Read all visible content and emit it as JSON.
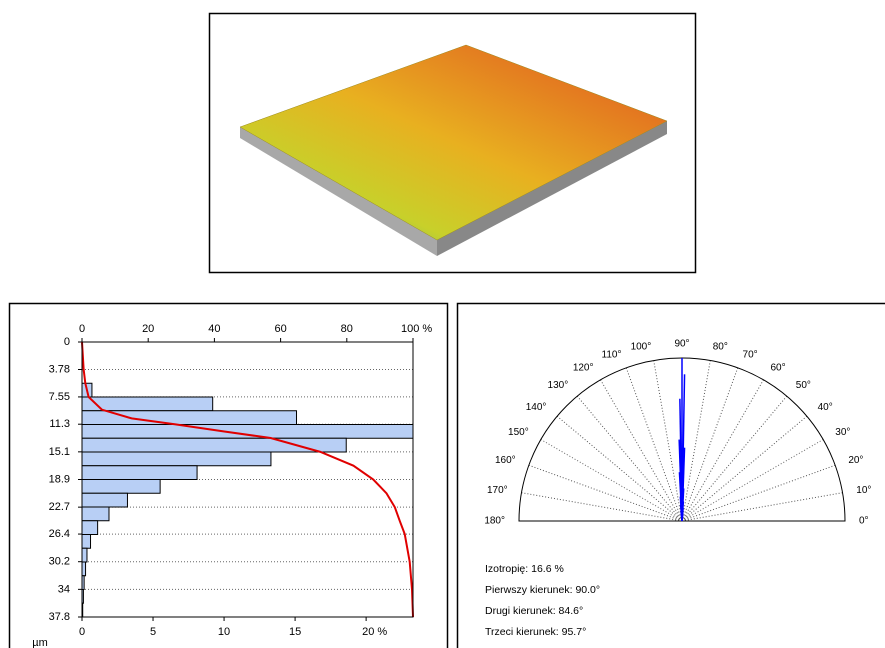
{
  "chart_data": [
    {
      "type": "histogram",
      "bins": [
        5.67,
        7.56,
        9.45,
        11.34,
        13.23,
        15.12,
        17.01,
        18.9,
        20.79,
        22.68,
        24.57,
        26.46,
        28.35,
        30.24,
        32.13,
        34.02,
        35.91,
        37.8
      ],
      "values": [
        0.7,
        9.2,
        15.1,
        23.3,
        18.6,
        13.3,
        8.1,
        5.5,
        3.2,
        1.9,
        1.1,
        0.6,
        0.35,
        0.25,
        0.15,
        0.1,
        0.05
      ],
      "color": "#b8cff5",
      "xlim": [
        0,
        23.3
      ],
      "xticks": [
        0,
        5,
        10,
        15,
        {
          "value": 20,
          "label": "20 %"
        }
      ],
      "ylim": [
        0,
        37.8
      ],
      "yticks": [
        0,
        3.78,
        7.55,
        11.3,
        15.1,
        18.9,
        22.7,
        26.4,
        30.2,
        34,
        37.8
      ],
      "ylabel": "µm",
      "grid": true,
      "x2lim": [
        0,
        100
      ],
      "x2ticks": [
        0,
        20,
        40,
        60,
        80,
        {
          "value": 100,
          "label": "100 %"
        }
      ],
      "cumulative": {
        "color": "#e00000",
        "depth": [
          0,
          3.78,
          5.67,
          7.56,
          9.3,
          10.5,
          11.3,
          12.3,
          13.2,
          15.1,
          17,
          18.9,
          20.8,
          22.7,
          24.6,
          26.4,
          30.2,
          34,
          37.8
        ],
        "percent": [
          0,
          0.5,
          1,
          2,
          6,
          15,
          28,
          43,
          57,
          72,
          82,
          88,
          92,
          94.5,
          96,
          97.5,
          99,
          99.7,
          100
        ]
      }
    },
    {
      "type": "polar",
      "color": "#0000ff",
      "rlim": [
        0,
        1
      ],
      "angles": [
        84,
        85,
        86,
        87,
        88,
        89,
        90,
        91,
        92,
        93,
        94,
        95,
        96
      ],
      "values": [
        0.05,
        0.08,
        0.12,
        0.2,
        0.45,
        0.9,
        1.0,
        0.75,
        0.5,
        0.3,
        0.15,
        0.1,
        0.06
      ],
      "thetaticks": [
        {
          "value": 0,
          "label": "0°"
        },
        {
          "value": 10,
          "label": "10°"
        },
        {
          "value": 20,
          "label": "20°"
        },
        {
          "value": 30,
          "label": "30°"
        },
        {
          "value": 40,
          "label": "40°"
        },
        {
          "value": 50,
          "label": "50°"
        },
        {
          "value": 60,
          "label": "60°"
        },
        {
          "value": 70,
          "label": "70°"
        },
        {
          "value": 80,
          "label": "80°"
        },
        {
          "value": 90,
          "label": "90°"
        },
        {
          "value": 100,
          "label": "100°"
        },
        {
          "value": 110,
          "label": "110°"
        },
        {
          "value": 120,
          "label": "120°"
        },
        {
          "value": 130,
          "label": "130°"
        },
        {
          "value": 140,
          "label": "140°"
        },
        {
          "value": 150,
          "label": "150°"
        },
        {
          "value": 160,
          "label": "160°"
        },
        {
          "value": 170,
          "label": "170°"
        },
        {
          "value": 180,
          "label": "180°"
        }
      ],
      "annotations": [
        "Izotropię: 16.6 %",
        "Pierwszy kierunek: 90.0°",
        "Drugi kierunek: 84.6°",
        "Trzeci kierunek: 95.7°"
      ]
    }
  ]
}
